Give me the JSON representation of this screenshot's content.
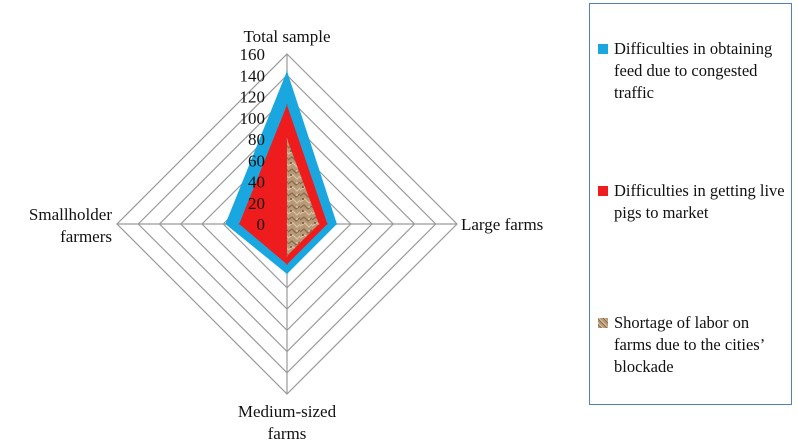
{
  "chart_data": {
    "type": "radar",
    "title": "",
    "axes": [
      "Total sample",
      "Large farms",
      "Medium-sized\nfarms",
      "Smallholder\nfarmers"
    ],
    "r_ticks": [
      0,
      20,
      40,
      60,
      80,
      100,
      120,
      140,
      160
    ],
    "rlim": [
      0,
      160
    ],
    "grid": true,
    "legend_position": "right",
    "series": [
      {
        "name": "Difficulties in obtaining feed due to congested traffic",
        "values": [
          144,
          47,
          47,
          58
        ],
        "color": "#1aa7e0"
      },
      {
        "name": "Difficulties in getting live pigs to market",
        "values": [
          112,
          38,
          38,
          45
        ],
        "color": "#ee1c1c"
      },
      {
        "name": "Shortage of labor on farms due to the cities’ blockade",
        "values": [
          80,
          30,
          30,
          0
        ],
        "color": "#b89a78"
      }
    ]
  }
}
